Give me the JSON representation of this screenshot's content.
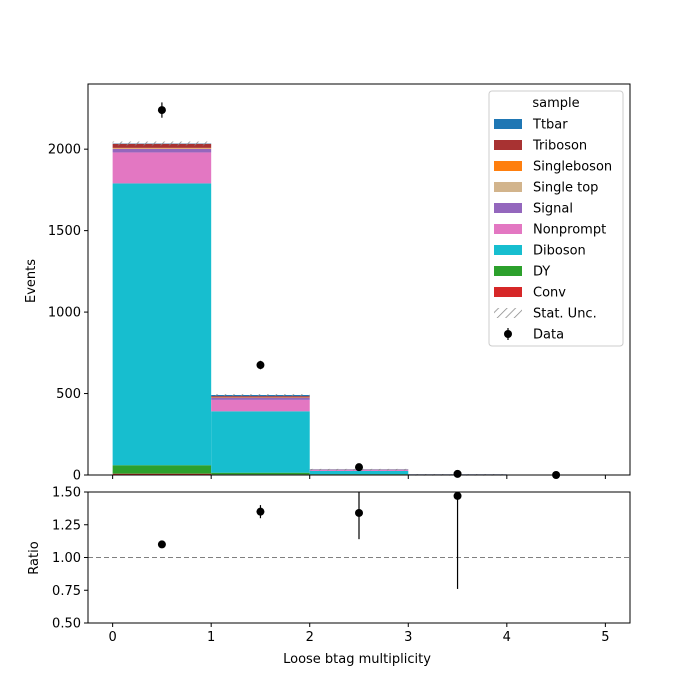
{
  "chart_data": [
    {
      "type": "bar",
      "subtype": "stacked-histogram",
      "bin_edges": [
        0,
        1,
        2,
        3,
        4,
        5
      ],
      "xlim": [
        -0.25,
        5.25
      ],
      "ylim": [
        0,
        2400
      ],
      "ylabel": "Events",
      "yticks": [
        0,
        500,
        1000,
        1500,
        2000
      ],
      "series": [
        {
          "name": "Conv",
          "color": "#d62728",
          "values": [
            8,
            4,
            1,
            0.2,
            0
          ]
        },
        {
          "name": "DY",
          "color": "#2ca02c",
          "values": [
            52,
            10,
            4,
            0.5,
            0
          ]
        },
        {
          "name": "Diboson",
          "color": "#17becf",
          "values": [
            1730,
            377,
            20,
            3,
            0
          ]
        },
        {
          "name": "Nonprompt",
          "color": "#e377c2",
          "values": [
            190,
            70,
            6,
            0.5,
            0
          ]
        },
        {
          "name": "Signal",
          "color": "#9467bd",
          "values": [
            22,
            12,
            2,
            0.3,
            0
          ]
        },
        {
          "name": "Single top",
          "color": "#d2b48c",
          "values": [
            3,
            2,
            0.5,
            0,
            0
          ]
        },
        {
          "name": "Singleboson",
          "color": "#ff7f0e",
          "values": [
            3,
            1,
            0,
            0,
            0
          ]
        },
        {
          "name": "Triboson",
          "color": "#a83232",
          "values": [
            25,
            8,
            1,
            0.2,
            0
          ]
        },
        {
          "name": "Ttbar",
          "color": "#1f77b4",
          "values": [
            2,
            7,
            1,
            0.3,
            0
          ]
        }
      ],
      "stat_unc": [
        12,
        6,
        2,
        0.5,
        0
      ],
      "stat_unc_label": "Stat. Unc.",
      "data": {
        "name": "Data",
        "x": [
          0.5,
          1.5,
          2.5,
          3.5,
          4.5
        ],
        "y": [
          2240,
          675,
          48,
          7,
          0
        ],
        "yerr": [
          47,
          26,
          7,
          2.6,
          0
        ]
      },
      "legend": {
        "title": "sample",
        "position": "top-right"
      }
    },
    {
      "type": "scatter",
      "subtype": "ratio",
      "xlabel": "Loose btag multiplicity",
      "ylabel": "Ratio",
      "xlim": [
        -0.25,
        5.25
      ],
      "ylim": [
        0.5,
        1.5
      ],
      "xticks": [
        0,
        1,
        2,
        3,
        4,
        5
      ],
      "yticks": [
        "0.50",
        "0.75",
        "1.00",
        "1.25",
        "1.50"
      ],
      "reference_line": 1.0,
      "x": [
        0.5,
        1.5,
        2.5,
        3.5
      ],
      "y": [
        1.1,
        1.35,
        1.34,
        1.47
      ],
      "yerr_low": [
        0.02,
        0.05,
        0.2,
        0.71
      ],
      "yerr_high": [
        0.02,
        0.05,
        0.2,
        0.71
      ]
    }
  ]
}
